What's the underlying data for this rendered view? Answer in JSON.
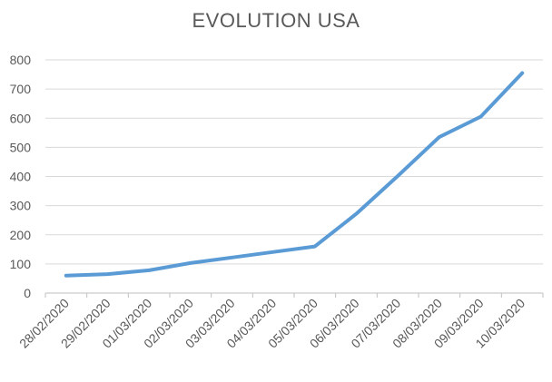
{
  "chart_data": {
    "type": "line",
    "title": "EVOLUTION USA",
    "xlabel": "",
    "ylabel": "",
    "ylim": [
      0,
      800
    ],
    "yticks": [
      0,
      100,
      200,
      300,
      400,
      500,
      600,
      700,
      800
    ],
    "grid": true,
    "legend": "none",
    "colors": {
      "series": "#5b9bd5",
      "grid": "#d9d9d9",
      "text": "#595959"
    },
    "categories": [
      "28/02/2020",
      "29/02/2020",
      "01/03/2020",
      "02/03/2020",
      "03/03/2020",
      "04/03/2020",
      "05/03/2020",
      "06/03/2020",
      "07/03/2020",
      "08/03/2020",
      "09/03/2020",
      "10/03/2020"
    ],
    "series": [
      {
        "values": [
          60,
          65,
          78,
          103,
          122,
          141,
          160,
          272,
          402,
          535,
          605,
          755
        ]
      }
    ]
  }
}
